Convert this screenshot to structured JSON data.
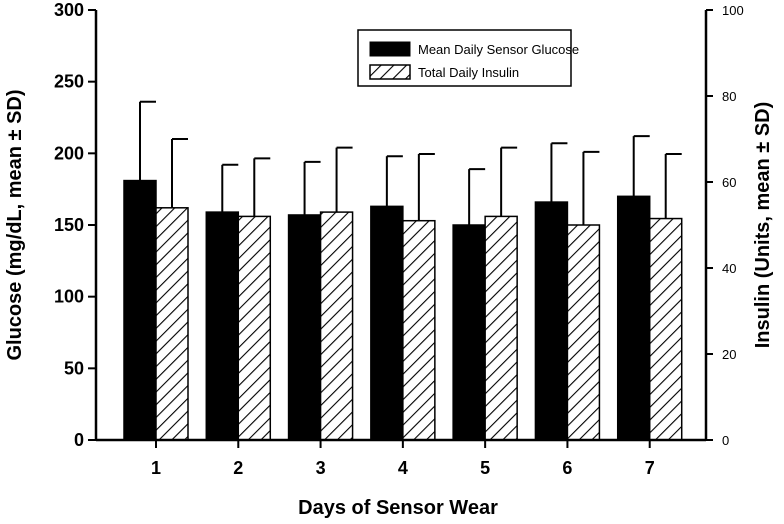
{
  "chart_data": {
    "type": "bar",
    "title": "",
    "xlabel": "Days of Sensor Wear",
    "ylabel": "Glucose (mg/dL, mean ± SD)",
    "ylabel_right": "Insulin (Units, mean ± SD)",
    "categories": [
      "1",
      "2",
      "3",
      "4",
      "5",
      "6",
      "7"
    ],
    "ylim": [
      0,
      300
    ],
    "ylim_right": [
      0,
      100
    ],
    "yticks": [
      "0",
      "50",
      "100",
      "150",
      "200",
      "250",
      "300"
    ],
    "yticks_right": [
      "0",
      "20",
      "40",
      "60",
      "80",
      "100"
    ],
    "grid": false,
    "legend_position": "top-right",
    "series": [
      {
        "name": "Mean Daily Sensor Glucose",
        "axis": "left",
        "fill": "solid",
        "color": "#000000",
        "values": [
          181,
          159,
          157,
          163,
          150,
          166,
          170
        ],
        "sd": [
          55,
          33,
          37,
          35,
          39,
          41,
          42
        ]
      },
      {
        "name": "Total Daily Insulin",
        "axis": "right",
        "fill": "hatched",
        "color": "#000000",
        "values": [
          54,
          52,
          53,
          51,
          52,
          50,
          51.5
        ],
        "sd": [
          16,
          13.5,
          15,
          15.5,
          16,
          17,
          15
        ]
      }
    ]
  }
}
